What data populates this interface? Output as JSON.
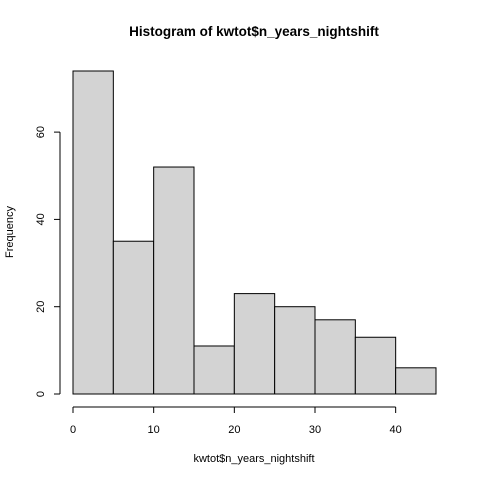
{
  "chart_data": {
    "type": "bar",
    "title": "Histogram of kwtot$n_years_nightshift",
    "xlabel": "kwtot$n_years_nightshift",
    "ylabel": "Frequency",
    "bins": [
      {
        "from": 0,
        "to": 5,
        "count": 74
      },
      {
        "from": 5,
        "to": 10,
        "count": 35
      },
      {
        "from": 10,
        "to": 15,
        "count": 52
      },
      {
        "from": 15,
        "to": 20,
        "count": 11
      },
      {
        "from": 20,
        "to": 25,
        "count": 23
      },
      {
        "from": 25,
        "to": 30,
        "count": 20
      },
      {
        "from": 30,
        "to": 35,
        "count": 17
      },
      {
        "from": 35,
        "to": 40,
        "count": 13
      },
      {
        "from": 40,
        "to": 45,
        "count": 6
      }
    ],
    "x_ticks": [
      0,
      10,
      20,
      30,
      40
    ],
    "y_ticks": [
      0,
      20,
      40,
      60
    ],
    "xlim": [
      0,
      45
    ],
    "ylim": [
      0,
      74
    ],
    "grid": false,
    "legend": "none",
    "bar_color": "#d3d3d3",
    "edge_color": "#000000"
  }
}
